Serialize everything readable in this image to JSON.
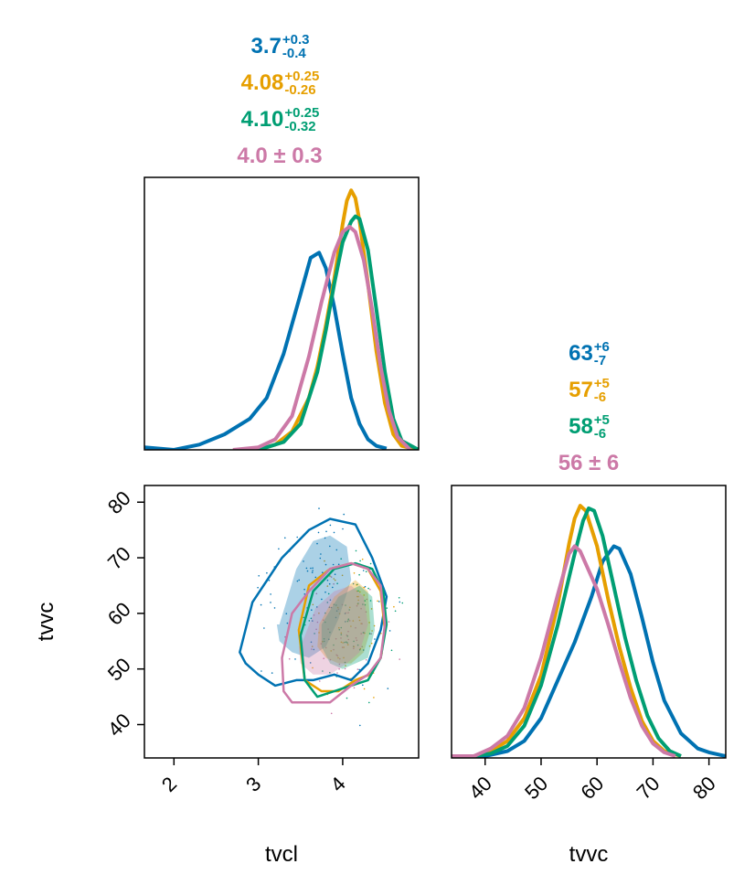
{
  "colors": {
    "blue": "#0072B2",
    "orange": "#E69F00",
    "green": "#009E73",
    "pink": "#CC79A7"
  },
  "annotations": {
    "tvcl": [
      {
        "series": "blue",
        "median": "3.7",
        "plus": "+0.3",
        "minus": "-0.4"
      },
      {
        "series": "orange",
        "median": "4.08",
        "plus": "+0.25",
        "minus": "-0.26"
      },
      {
        "series": "green",
        "median": "4.10",
        "plus": "+0.25",
        "minus": "-0.32"
      },
      {
        "series": "pink",
        "text": "4.0 ± 0.3"
      }
    ],
    "tvvc": [
      {
        "series": "blue",
        "median": "63",
        "plus": "+6",
        "minus": "-7"
      },
      {
        "series": "orange",
        "median": "57",
        "plus": "+5",
        "minus": "-6"
      },
      {
        "series": "green",
        "median": "58",
        "plus": "+5",
        "minus": "-6"
      },
      {
        "series": "pink",
        "text": "56 ± 6"
      }
    ]
  },
  "chart_data": [
    {
      "panel": "marginal-tvcl",
      "type": "line",
      "xlim": [
        1.65,
        4.9
      ],
      "series": [
        {
          "color": "blue",
          "x": [
            1.65,
            2.0,
            2.3,
            2.6,
            2.9,
            3.1,
            3.3,
            3.5,
            3.62,
            3.72,
            3.8,
            3.9,
            4.0,
            4.1,
            4.2,
            4.3,
            4.4,
            4.52
          ],
          "y": [
            0.01,
            0.0,
            0.02,
            0.06,
            0.12,
            0.2,
            0.37,
            0.6,
            0.74,
            0.76,
            0.7,
            0.55,
            0.37,
            0.2,
            0.1,
            0.04,
            0.015,
            0.005
          ]
        },
        {
          "color": "orange",
          "x": [
            2.7,
            3.0,
            3.2,
            3.4,
            3.6,
            3.7,
            3.8,
            3.9,
            4.0,
            4.05,
            4.1,
            4.15,
            4.2,
            4.3,
            4.4,
            4.5,
            4.6,
            4.7,
            4.9
          ],
          "y": [
            0.0,
            0.0,
            0.02,
            0.07,
            0.2,
            0.32,
            0.48,
            0.66,
            0.87,
            0.96,
            1.0,
            0.97,
            0.88,
            0.64,
            0.38,
            0.18,
            0.06,
            0.015,
            0.0
          ]
        },
        {
          "color": "green",
          "x": [
            2.8,
            3.1,
            3.3,
            3.5,
            3.7,
            3.8,
            3.9,
            4.0,
            4.1,
            4.15,
            4.2,
            4.3,
            4.4,
            4.5,
            4.6,
            4.7,
            4.9
          ],
          "y": [
            0.0,
            0.01,
            0.03,
            0.1,
            0.3,
            0.46,
            0.64,
            0.8,
            0.88,
            0.9,
            0.89,
            0.77,
            0.54,
            0.3,
            0.12,
            0.035,
            0.0
          ]
        },
        {
          "color": "pink",
          "x": [
            2.7,
            3.0,
            3.2,
            3.4,
            3.6,
            3.75,
            3.9,
            4.0,
            4.08,
            4.15,
            4.25,
            4.35,
            4.45,
            4.55,
            4.65,
            4.8
          ],
          "y": [
            0.0,
            0.01,
            0.04,
            0.13,
            0.36,
            0.57,
            0.76,
            0.84,
            0.86,
            0.84,
            0.73,
            0.54,
            0.32,
            0.15,
            0.05,
            0.0
          ]
        }
      ]
    },
    {
      "panel": "joint-tvcl-tvvc",
      "type": "scatter",
      "xlabel": "tvcl",
      "ylabel": "tvvc",
      "xlim": [
        1.65,
        4.9
      ],
      "ylim": [
        34,
        83
      ],
      "xticks": [
        2,
        3,
        4
      ],
      "yticks": [
        40,
        50,
        60,
        70,
        80
      ],
      "contours": [
        {
          "color": "blue",
          "kind": "fill",
          "x": [
            3.25,
            3.45,
            3.65,
            3.85,
            4.05,
            4.1,
            3.95,
            3.8,
            3.6,
            3.4,
            3.25,
            3.22
          ],
          "y": [
            58,
            68,
            73,
            74,
            72,
            66,
            59,
            54,
            52,
            53,
            55,
            58
          ]
        },
        {
          "color": "blue",
          "kind": "line",
          "x": [
            2.78,
            2.93,
            3.28,
            3.6,
            3.85,
            4.15,
            4.35,
            4.52,
            4.45,
            4.3,
            4.1,
            3.9,
            3.65,
            3.45,
            3.2,
            3.0,
            2.85,
            2.78
          ],
          "y": [
            53,
            62,
            70,
            75,
            77,
            76,
            70,
            63,
            57,
            51,
            48,
            49,
            48,
            48,
            47,
            49,
            51,
            53
          ]
        },
        {
          "color": "orange",
          "kind": "fill",
          "x": [
            3.72,
            3.9,
            4.15,
            4.3,
            4.33,
            4.25,
            4.1,
            3.95,
            3.8,
            3.7,
            3.72
          ],
          "y": [
            58,
            63,
            66,
            64,
            57,
            53,
            51,
            51,
            52,
            54,
            58
          ]
        },
        {
          "color": "orange",
          "kind": "line",
          "x": [
            3.48,
            3.6,
            3.85,
            4.1,
            4.3,
            4.45,
            4.5,
            4.45,
            4.32,
            4.15,
            3.95,
            3.75,
            3.55,
            3.48
          ],
          "y": [
            57,
            65,
            68,
            69,
            68,
            64,
            57,
            52,
            49,
            48,
            46,
            46,
            48,
            57
          ]
        },
        {
          "color": "green",
          "kind": "fill",
          "x": [
            3.75,
            3.95,
            4.2,
            4.35,
            4.38,
            4.3,
            4.15,
            4.0,
            3.85,
            3.75,
            3.75
          ],
          "y": [
            58,
            63,
            65,
            63,
            57,
            52,
            51,
            50,
            51,
            54,
            58
          ]
        },
        {
          "color": "green",
          "kind": "line",
          "x": [
            3.5,
            3.65,
            3.9,
            4.15,
            4.35,
            4.48,
            4.52,
            4.45,
            4.3,
            4.1,
            3.9,
            3.7,
            3.55,
            3.5
          ],
          "y": [
            56,
            64,
            68,
            69,
            68,
            64,
            58,
            52,
            48,
            47,
            46,
            45,
            48,
            56
          ]
        },
        {
          "color": "pink",
          "kind": "fill",
          "x": [
            3.5,
            3.68,
            3.9,
            4.1,
            4.25,
            4.3,
            4.2,
            4.05,
            3.85,
            3.65,
            3.5,
            3.48
          ],
          "y": [
            54,
            61,
            64,
            65,
            63,
            58,
            53,
            51,
            49,
            49,
            51,
            54
          ]
        },
        {
          "color": "pink",
          "kind": "line",
          "x": [
            3.28,
            3.4,
            3.6,
            3.85,
            4.1,
            4.3,
            4.45,
            4.5,
            4.45,
            4.3,
            4.1,
            3.85,
            3.6,
            3.4,
            3.3,
            3.28
          ],
          "y": [
            52,
            60,
            64,
            68,
            69,
            68,
            65,
            58,
            52,
            49,
            47,
            44,
            44,
            44,
            46,
            52
          ]
        }
      ]
    },
    {
      "panel": "marginal-tvvc",
      "type": "line",
      "xlabel": "tvvc",
      "xlim": [
        34,
        83
      ],
      "xticks": [
        40,
        50,
        60,
        70,
        80
      ],
      "series": [
        {
          "color": "blue",
          "x": [
            34,
            40,
            44,
            47,
            50,
            53,
            56,
            59,
            61,
            63,
            64,
            66,
            68,
            70,
            72,
            75,
            78,
            80,
            83
          ],
          "y": [
            0.0,
            0.0,
            0.02,
            0.06,
            0.15,
            0.3,
            0.45,
            0.63,
            0.77,
            0.83,
            0.82,
            0.72,
            0.55,
            0.37,
            0.22,
            0.09,
            0.03,
            0.015,
            0.0
          ]
        },
        {
          "color": "orange",
          "x": [
            34,
            38,
            41,
            44,
            47,
            50,
            53,
            55,
            56,
            57,
            58,
            60,
            62,
            64,
            66,
            68,
            70,
            72,
            75
          ],
          "y": [
            0.0,
            0.0,
            0.02,
            0.06,
            0.15,
            0.32,
            0.6,
            0.84,
            0.94,
            0.99,
            0.97,
            0.83,
            0.62,
            0.43,
            0.27,
            0.14,
            0.06,
            0.02,
            0.0
          ]
        },
        {
          "color": "green",
          "x": [
            34,
            38,
            41,
            44,
            47,
            50,
            53,
            56,
            57.5,
            58.5,
            59.5,
            61,
            63,
            65,
            67,
            69,
            71,
            73,
            75
          ],
          "y": [
            0.0,
            0.0,
            0.01,
            0.04,
            0.12,
            0.28,
            0.52,
            0.8,
            0.93,
            0.98,
            0.97,
            0.87,
            0.67,
            0.47,
            0.3,
            0.16,
            0.07,
            0.02,
            0.0
          ]
        },
        {
          "color": "pink",
          "x": [
            34,
            38,
            41,
            44,
            47,
            50,
            53,
            55,
            56,
            57,
            58,
            60,
            62,
            64,
            66,
            68,
            70,
            72,
            74
          ],
          "y": [
            0.0,
            0.0,
            0.03,
            0.08,
            0.19,
            0.39,
            0.64,
            0.8,
            0.83,
            0.81,
            0.76,
            0.66,
            0.52,
            0.37,
            0.23,
            0.12,
            0.05,
            0.015,
            0.0
          ]
        }
      ]
    }
  ]
}
